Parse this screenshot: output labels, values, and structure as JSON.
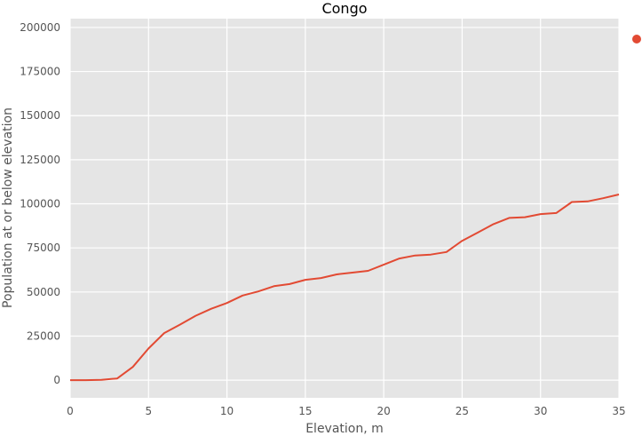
{
  "chart_data": {
    "type": "line",
    "title": "Congo",
    "xlabel": "Elevation, m",
    "ylabel": "Population at or below elevation",
    "xlim": [
      0,
      35
    ],
    "ylim": [
      -10000,
      205000
    ],
    "x_ticks": [
      "0",
      "5",
      "10",
      "15",
      "20",
      "25",
      "30",
      "35"
    ],
    "y_ticks": [
      "0",
      "25000",
      "50000",
      "75000",
      "100000",
      "125000",
      "150000",
      "175000",
      "200000"
    ],
    "grid": true,
    "legend_position": "right",
    "series": [
      {
        "color": "#E24A33",
        "x": [
          0,
          1,
          2,
          3,
          4,
          5,
          6,
          7,
          8,
          9,
          10,
          11,
          12,
          13,
          14,
          15,
          16,
          17,
          18,
          19,
          20,
          21,
          22,
          23,
          24,
          25,
          26,
          27,
          28,
          29,
          30,
          31,
          32,
          33,
          34,
          35
        ],
        "values": [
          0,
          0,
          200,
          1000,
          7500,
          18000,
          26700,
          31500,
          36500,
          40500,
          43800,
          48000,
          50300,
          53300,
          54500,
          56900,
          57900,
          60000,
          61000,
          62000,
          65500,
          69000,
          70700,
          71200,
          72700,
          79000,
          83700,
          88500,
          92000,
          92400,
          94200,
          94800,
          101000,
          101400,
          103200,
          105300
        ]
      }
    ]
  }
}
